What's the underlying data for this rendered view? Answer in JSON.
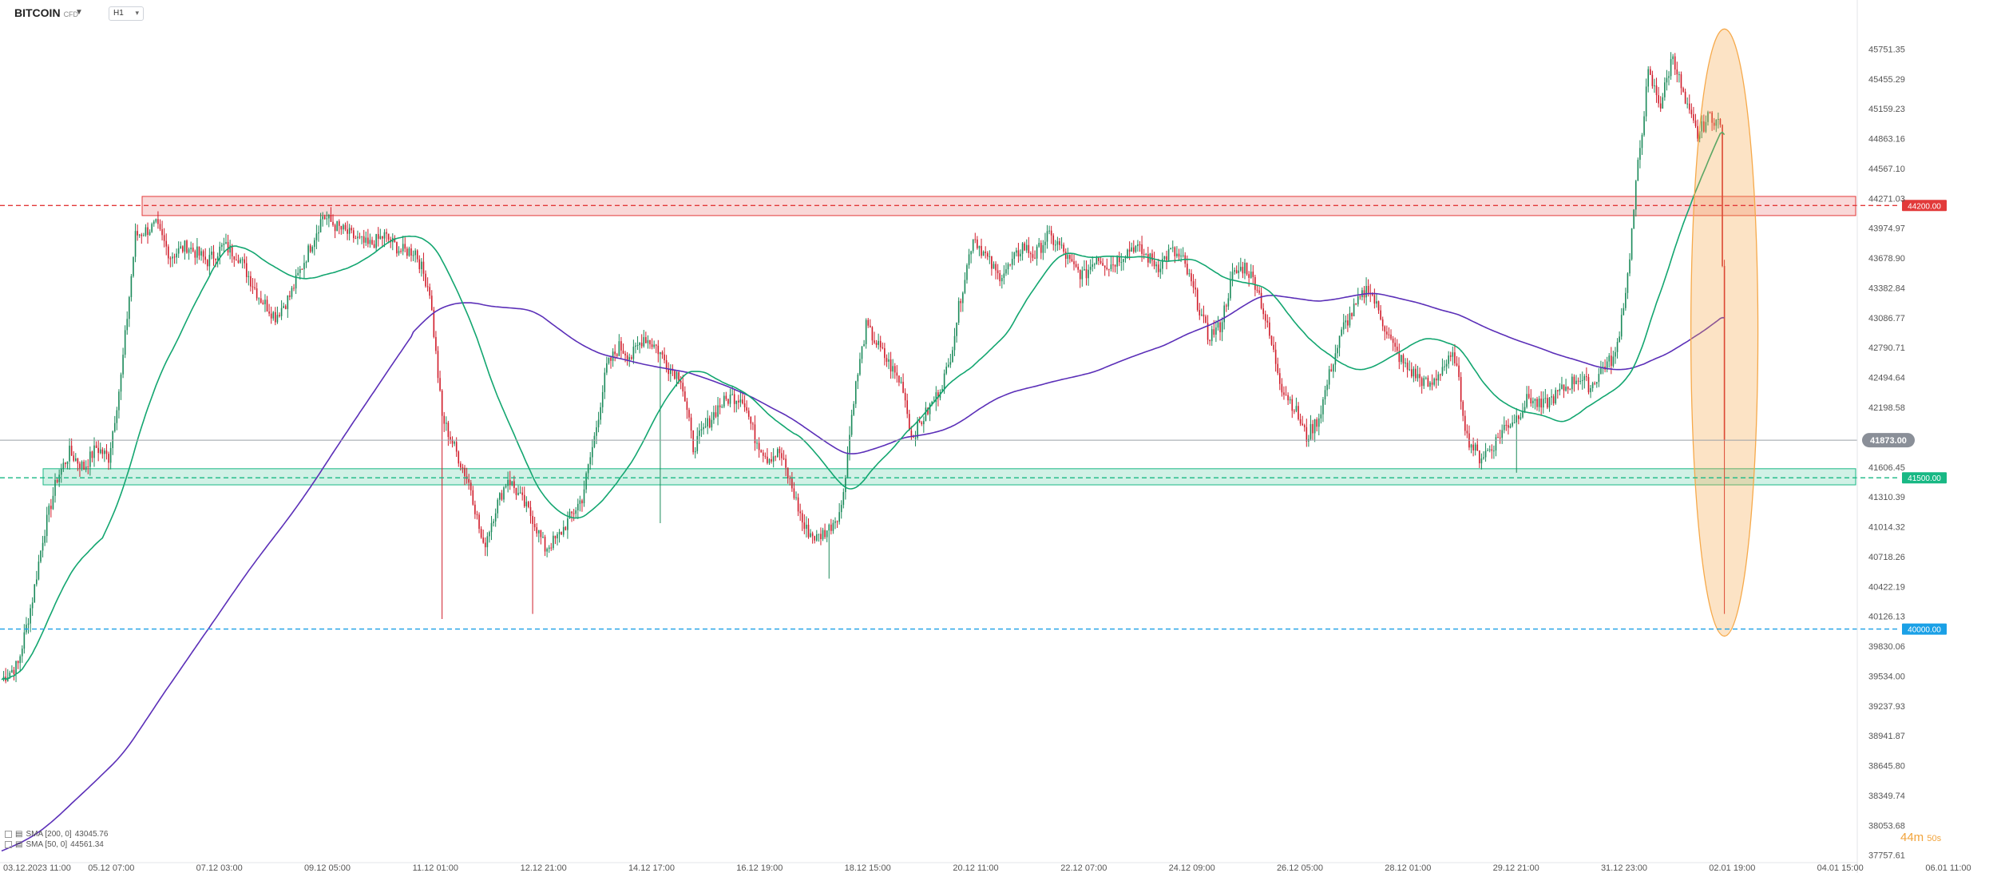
{
  "header": {
    "symbol": "BITCOIN",
    "symbol_type": "CFD",
    "timeframe": "H1"
  },
  "legend": [
    {
      "label": "SMA [200, 0]",
      "value": "43045.76",
      "color": "#5b2fb8"
    },
    {
      "label": "SMA [50, 0]",
      "value": "44561.34",
      "color": "#13a670"
    }
  ],
  "timer": {
    "minutes": "44m",
    "seconds": "50s"
  },
  "colors": {
    "up": "#1b8a5a",
    "down": "#d01c2a",
    "sma50": "#13a670",
    "sma200": "#5b2fb8",
    "resistance": "#e23a3a",
    "support": "#18b884",
    "level40000": "#1aa0e6",
    "highlight": "#f6a94a",
    "current": "#8a8f98"
  },
  "chart_data": {
    "type": "candlestick",
    "y_axis_ticks": [
      "45751.35",
      "45455.29",
      "45159.23",
      "44863.16",
      "44567.10",
      "44271.03",
      "43974.97",
      "43678.90",
      "43382.84",
      "43086.77",
      "42790.71",
      "42494.64",
      "42198.58",
      "41606.45",
      "41310.39",
      "41014.32",
      "40718.26",
      "40422.19",
      "40126.13",
      "39830.06",
      "39534.00",
      "39237.93",
      "38941.87",
      "38645.80",
      "38349.74",
      "38053.68",
      "37757.61"
    ],
    "x_axis_ticks": [
      "03.12.2023   11:00",
      "05.12   07:00",
      "07.12   03:00",
      "09.12   05:00",
      "11.12   01:00",
      "12.12   21:00",
      "14.12   17:00",
      "16.12   19:00",
      "18.12   15:00",
      "20.12   11:00",
      "22.12   07:00",
      "24.12   09:00",
      "26.12   05:00",
      "28.12   01:00",
      "29.12   21:00",
      "31.12   23:00",
      "02.01   19:00",
      "04.01   15:00",
      "06.01   11:00"
    ],
    "ylim": [
      37700,
      46000
    ],
    "current_price": "41873.00",
    "levels": [
      {
        "name": "resistance",
        "value": "44200.00",
        "zone": [
          44100,
          44290
        ]
      },
      {
        "name": "support",
        "value": "41500.00",
        "zone": [
          41430,
          41590
        ]
      },
      {
        "name": "target",
        "value": "40000.00"
      }
    ],
    "price_path": [
      [
        0,
        39500
      ],
      [
        8,
        39650
      ],
      [
        15,
        40300
      ],
      [
        20,
        40900
      ],
      [
        27,
        41500
      ],
      [
        33,
        41750
      ],
      [
        40,
        41600
      ],
      [
        46,
        41800
      ],
      [
        52,
        41700
      ],
      [
        58,
        42500
      ],
      [
        65,
        43900
      ],
      [
        75,
        44000
      ],
      [
        82,
        43700
      ],
      [
        90,
        43800
      ],
      [
        100,
        43650
      ],
      [
        108,
        43800
      ],
      [
        115,
        43700
      ],
      [
        125,
        43300
      ],
      [
        133,
        43100
      ],
      [
        140,
        43300
      ],
      [
        148,
        43700
      ],
      [
        156,
        44100
      ],
      [
        162,
        44000
      ],
      [
        170,
        43900
      ],
      [
        178,
        43800
      ],
      [
        186,
        43900
      ],
      [
        194,
        43750
      ],
      [
        201,
        43750
      ],
      [
        208,
        43350
      ],
      [
        214,
        42100
      ],
      [
        222,
        41700
      ],
      [
        228,
        41400
      ],
      [
        234,
        40800
      ],
      [
        240,
        41200
      ],
      [
        246,
        41500
      ],
      [
        252,
        41300
      ],
      [
        258,
        41100
      ],
      [
        264,
        40800
      ],
      [
        270,
        40900
      ],
      [
        276,
        41100
      ],
      [
        282,
        41300
      ],
      [
        288,
        41900
      ],
      [
        294,
        42600
      ],
      [
        300,
        42800
      ],
      [
        306,
        42700
      ],
      [
        312,
        42900
      ],
      [
        318,
        42800
      ],
      [
        324,
        42600
      ],
      [
        330,
        42500
      ],
      [
        336,
        41800
      ],
      [
        342,
        42000
      ],
      [
        348,
        42200
      ],
      [
        354,
        42300
      ],
      [
        360,
        42300
      ],
      [
        366,
        41900
      ],
      [
        372,
        41700
      ],
      [
        378,
        41750
      ],
      [
        384,
        41400
      ],
      [
        390,
        41000
      ],
      [
        396,
        40900
      ],
      [
        402,
        41000
      ],
      [
        408,
        41200
      ],
      [
        414,
        42300
      ],
      [
        420,
        43000
      ],
      [
        426,
        42800
      ],
      [
        432,
        42600
      ],
      [
        438,
        42400
      ],
      [
        442,
        41900
      ],
      [
        448,
        42100
      ],
      [
        454,
        42300
      ],
      [
        460,
        42600
      ],
      [
        466,
        43300
      ],
      [
        472,
        43900
      ],
      [
        478,
        43700
      ],
      [
        484,
        43500
      ],
      [
        490,
        43600
      ],
      [
        496,
        43800
      ],
      [
        502,
        43700
      ],
      [
        508,
        43900
      ],
      [
        514,
        43800
      ],
      [
        520,
        43600
      ],
      [
        526,
        43500
      ],
      [
        532,
        43700
      ],
      [
        538,
        43600
      ],
      [
        544,
        43700
      ],
      [
        550,
        43800
      ],
      [
        556,
        43700
      ],
      [
        562,
        43600
      ],
      [
        568,
        43750
      ],
      [
        574,
        43650
      ],
      [
        580,
        43300
      ],
      [
        586,
        42900
      ],
      [
        592,
        43000
      ],
      [
        598,
        43500
      ],
      [
        604,
        43600
      ],
      [
        610,
        43400
      ],
      [
        616,
        42900
      ],
      [
        622,
        42400
      ],
      [
        628,
        42200
      ],
      [
        634,
        41900
      ],
      [
        640,
        42100
      ],
      [
        646,
        42600
      ],
      [
        652,
        43000
      ],
      [
        658,
        43200
      ],
      [
        664,
        43400
      ],
      [
        670,
        43100
      ],
      [
        676,
        42800
      ],
      [
        682,
        42600
      ],
      [
        688,
        42500
      ],
      [
        694,
        42400
      ],
      [
        700,
        42600
      ],
      [
        706,
        42700
      ],
      [
        712,
        41900
      ],
      [
        718,
        41700
      ],
      [
        724,
        41800
      ],
      [
        730,
        42000
      ],
      [
        736,
        42100
      ],
      [
        742,
        42300
      ],
      [
        748,
        42200
      ],
      [
        754,
        42300
      ],
      [
        760,
        42400
      ],
      [
        766,
        42500
      ],
      [
        772,
        42400
      ],
      [
        778,
        42600
      ],
      [
        784,
        42700
      ],
      [
        790,
        43500
      ],
      [
        795,
        44600
      ],
      [
        800,
        45500
      ],
      [
        806,
        45200
      ],
      [
        812,
        45700
      ],
      [
        818,
        45200
      ],
      [
        824,
        44900
      ],
      [
        830,
        45100
      ],
      [
        835,
        45000
      ],
      [
        836,
        43600
      ],
      [
        837,
        41873
      ]
    ]
  }
}
